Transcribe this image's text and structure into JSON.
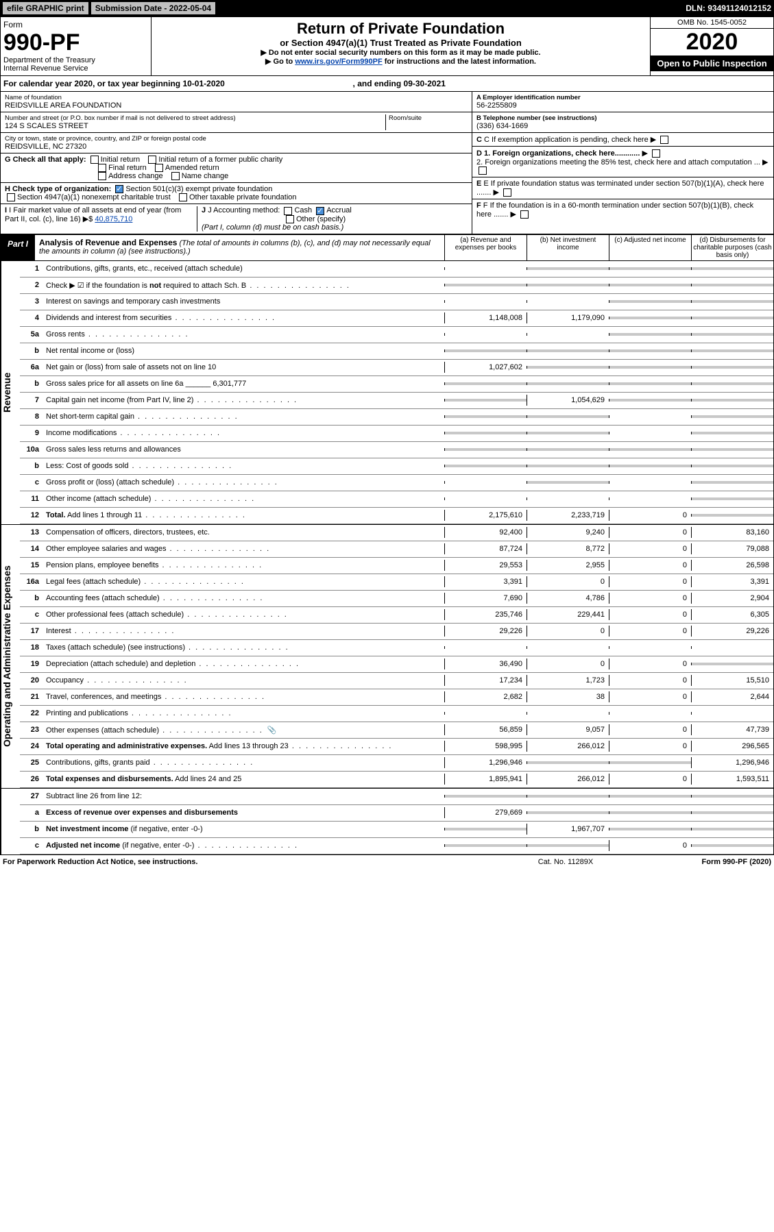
{
  "topbar": {
    "efile": "efile GRAPHIC print",
    "subdate_label": "Submission Date - 2022-05-04",
    "dln": "DLN: 93491124012152"
  },
  "header": {
    "form_word": "Form",
    "form_num": "990-PF",
    "dept": "Department of the Treasury\nInternal Revenue Service",
    "title": "Return of Private Foundation",
    "subtitle": "or Section 4947(a)(1) Trust Treated as Private Foundation",
    "note1": "▶ Do not enter social security numbers on this form as it may be made public.",
    "note2_pre": "▶ Go to ",
    "note2_link": "www.irs.gov/Form990PF",
    "note2_post": " for instructions and the latest information.",
    "omb": "OMB No. 1545-0052",
    "year": "2020",
    "open": "Open to Public Inspection"
  },
  "calrow": {
    "pre": "For calendar year 2020, or tax year beginning ",
    "begin": "10-01-2020",
    "mid": " , and ending ",
    "end": "09-30-2021"
  },
  "info": {
    "name_lbl": "Name of foundation",
    "name": "REIDSVILLE AREA FOUNDATION",
    "addr_lbl": "Number and street (or P.O. box number if mail is not delivered to street address)",
    "addr": "124 S SCALES STREET",
    "room_lbl": "Room/suite",
    "city_lbl": "City or town, state or province, country, and ZIP or foreign postal code",
    "city": "REIDSVILLE, NC  27320",
    "ein_lbl": "A Employer identification number",
    "ein": "56-2255809",
    "tel_lbl": "B Telephone number (see instructions)",
    "tel": "(336) 634-1669",
    "c_lbl": "C If exemption application is pending, check here",
    "g_lbl": "G Check all that apply:",
    "g_opts": [
      "Initial return",
      "Initial return of a former public charity",
      "Final return",
      "Amended return",
      "Address change",
      "Name change"
    ],
    "d1": "D 1. Foreign organizations, check here............",
    "d2": "2. Foreign organizations meeting the 85% test, check here and attach computation ...",
    "h_lbl": "H Check type of organization:",
    "h1": "Section 501(c)(3) exempt private foundation",
    "h2": "Section 4947(a)(1) nonexempt charitable trust",
    "h3": "Other taxable private foundation",
    "e_lbl": "E If private foundation status was terminated under section 507(b)(1)(A), check here .......",
    "i_lbl": "I Fair market value of all assets at end of year (from Part II, col. (c), line 16) ▶$ ",
    "i_val": "40,875,710",
    "j_lbl": "J Accounting method:",
    "j_cash": "Cash",
    "j_accrual": "Accrual",
    "j_other": "Other (specify)",
    "j_note": "(Part I, column (d) must be on cash basis.)",
    "f_lbl": "F If the foundation is in a 60-month termination under section 507(b)(1)(B), check here ......."
  },
  "part1": {
    "tag": "Part I",
    "title": "Analysis of Revenue and Expenses",
    "subtitle": " (The total of amounts in columns (b), (c), and (d) may not necessarily equal the amounts in column (a) (see instructions).)",
    "col_a": "(a) Revenue and expenses per books",
    "col_b": "(b) Net investment income",
    "col_c": "(c) Adjusted net income",
    "col_d": "(d) Disbursements for charitable purposes (cash basis only)"
  },
  "sides": {
    "rev": "Revenue",
    "exp": "Operating and Administrative Expenses"
  },
  "rows": [
    {
      "n": "1",
      "lbl": "Contributions, gifts, grants, etc., received (attach schedule)",
      "a": "",
      "b": "grey",
      "c": "grey",
      "d": "grey"
    },
    {
      "n": "2",
      "lbl": "Check ▶ ☑ if the foundation is <b>not</b> required to attach Sch. B",
      "dots": true,
      "a": "grey",
      "b": "grey",
      "c": "grey",
      "d": "grey"
    },
    {
      "n": "3",
      "lbl": "Interest on savings and temporary cash investments",
      "a": "",
      "b": "",
      "c": "grey",
      "d": "grey"
    },
    {
      "n": "4",
      "lbl": "Dividends and interest from securities",
      "dots": true,
      "a": "1,148,008",
      "b": "1,179,090",
      "c": "grey",
      "d": "grey"
    },
    {
      "n": "5a",
      "lbl": "Gross rents",
      "dots": true,
      "a": "",
      "b": "",
      "c": "grey",
      "d": "grey"
    },
    {
      "n": "b",
      "lbl": "Net rental income or (loss)",
      "a": "grey",
      "b": "grey",
      "c": "grey",
      "d": "grey"
    },
    {
      "n": "6a",
      "lbl": "Net gain or (loss) from sale of assets not on line 10",
      "a": "1,027,602",
      "b": "grey",
      "c": "grey",
      "d": "grey"
    },
    {
      "n": "b",
      "lbl": "Gross sales price for all assets on line 6a ______ 6,301,777",
      "a": "grey",
      "b": "grey",
      "c": "grey",
      "d": "grey"
    },
    {
      "n": "7",
      "lbl": "Capital gain net income (from Part IV, line 2)",
      "dots": true,
      "a": "grey",
      "b": "1,054,629",
      "c": "grey",
      "d": "grey"
    },
    {
      "n": "8",
      "lbl": "Net short-term capital gain",
      "dots": true,
      "a": "grey",
      "b": "grey",
      "c": "",
      "d": "grey"
    },
    {
      "n": "9",
      "lbl": "Income modifications",
      "dots": true,
      "a": "grey",
      "b": "grey",
      "c": "",
      "d": "grey"
    },
    {
      "n": "10a",
      "lbl": "Gross sales less returns and allowances",
      "a": "grey",
      "b": "grey",
      "c": "grey",
      "d": "grey"
    },
    {
      "n": "b",
      "lbl": "Less: Cost of goods sold",
      "dots": true,
      "a": "grey",
      "b": "grey",
      "c": "grey",
      "d": "grey"
    },
    {
      "n": "c",
      "lbl": "Gross profit or (loss) (attach schedule)",
      "dots": true,
      "a": "",
      "b": "grey",
      "c": "",
      "d": "grey"
    },
    {
      "n": "11",
      "lbl": "Other income (attach schedule)",
      "dots": true,
      "a": "",
      "b": "",
      "c": "",
      "d": "grey"
    },
    {
      "n": "12",
      "lbl": "<b>Total.</b> Add lines 1 through 11",
      "dots": true,
      "a": "2,175,610",
      "b": "2,233,719",
      "c": "0",
      "d": "grey"
    }
  ],
  "exprows": [
    {
      "n": "13",
      "lbl": "Compensation of officers, directors, trustees, etc.",
      "a": "92,400",
      "b": "9,240",
      "c": "0",
      "d": "83,160"
    },
    {
      "n": "14",
      "lbl": "Other employee salaries and wages",
      "dots": true,
      "a": "87,724",
      "b": "8,772",
      "c": "0",
      "d": "79,088"
    },
    {
      "n": "15",
      "lbl": "Pension plans, employee benefits",
      "dots": true,
      "a": "29,553",
      "b": "2,955",
      "c": "0",
      "d": "26,598"
    },
    {
      "n": "16a",
      "lbl": "Legal fees (attach schedule)",
      "dots": true,
      "a": "3,391",
      "b": "0",
      "c": "0",
      "d": "3,391"
    },
    {
      "n": "b",
      "lbl": "Accounting fees (attach schedule)",
      "dots": true,
      "a": "7,690",
      "b": "4,786",
      "c": "0",
      "d": "2,904"
    },
    {
      "n": "c",
      "lbl": "Other professional fees (attach schedule)",
      "dots": true,
      "a": "235,746",
      "b": "229,441",
      "c": "0",
      "d": "6,305"
    },
    {
      "n": "17",
      "lbl": "Interest",
      "dots": true,
      "a": "29,226",
      "b": "0",
      "c": "0",
      "d": "29,226"
    },
    {
      "n": "18",
      "lbl": "Taxes (attach schedule) (see instructions)",
      "dots": true,
      "a": "",
      "b": "",
      "c": "",
      "d": ""
    },
    {
      "n": "19",
      "lbl": "Depreciation (attach schedule) and depletion",
      "dots": true,
      "a": "36,490",
      "b": "0",
      "c": "0",
      "d": "grey"
    },
    {
      "n": "20",
      "lbl": "Occupancy",
      "dots": true,
      "a": "17,234",
      "b": "1,723",
      "c": "0",
      "d": "15,510"
    },
    {
      "n": "21",
      "lbl": "Travel, conferences, and meetings",
      "dots": true,
      "a": "2,682",
      "b": "38",
      "c": "0",
      "d": "2,644"
    },
    {
      "n": "22",
      "lbl": "Printing and publications",
      "dots": true,
      "a": "",
      "b": "",
      "c": "",
      "d": ""
    },
    {
      "n": "23",
      "lbl": "Other expenses (attach schedule)",
      "dots": true,
      "icon": true,
      "a": "56,859",
      "b": "9,057",
      "c": "0",
      "d": "47,739"
    },
    {
      "n": "24",
      "lbl": "<b>Total operating and administrative expenses.</b> Add lines 13 through 23",
      "dots": true,
      "a": "598,995",
      "b": "266,012",
      "c": "0",
      "d": "296,565"
    },
    {
      "n": "25",
      "lbl": "Contributions, gifts, grants paid",
      "dots": true,
      "a": "1,296,946",
      "b": "grey",
      "c": "grey",
      "d": "1,296,946"
    },
    {
      "n": "26",
      "lbl": "<b>Total expenses and disbursements.</b> Add lines 24 and 25",
      "a": "1,895,941",
      "b": "266,012",
      "c": "0",
      "d": "1,593,511"
    }
  ],
  "botrows": [
    {
      "n": "27",
      "lbl": "Subtract line 26 from line 12:",
      "a": "grey",
      "b": "grey",
      "c": "grey",
      "d": "grey"
    },
    {
      "n": "a",
      "lbl": "<b>Excess of revenue over expenses and disbursements</b>",
      "a": "279,669",
      "b": "grey",
      "c": "grey",
      "d": "grey"
    },
    {
      "n": "b",
      "lbl": "<b>Net investment income</b> (if negative, enter -0-)",
      "a": "grey",
      "b": "1,967,707",
      "c": "grey",
      "d": "grey"
    },
    {
      "n": "c",
      "lbl": "<b>Adjusted net income</b> (if negative, enter -0-)",
      "dots": true,
      "a": "grey",
      "b": "grey",
      "c": "0",
      "d": "grey"
    }
  ],
  "footer": {
    "left": "For Paperwork Reduction Act Notice, see instructions.",
    "mid": "Cat. No. 11289X",
    "right": "Form 990-PF (2020)"
  }
}
